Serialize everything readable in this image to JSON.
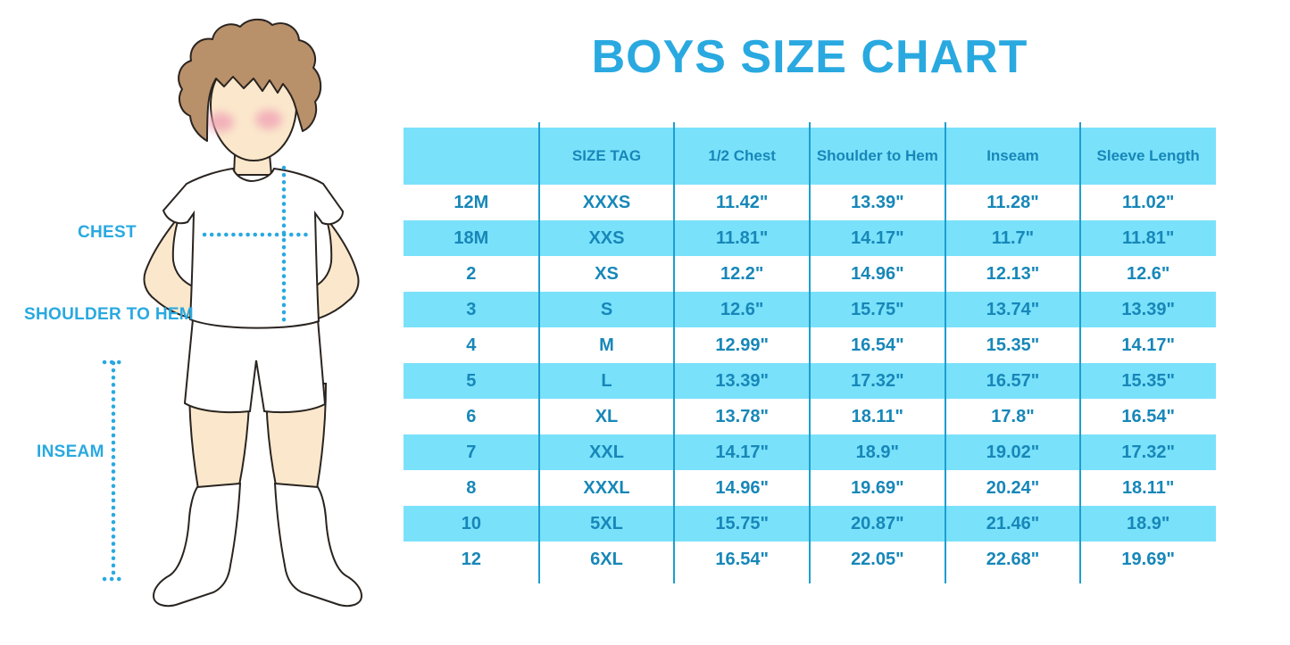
{
  "title": "BOYS SIZE CHART",
  "figure": {
    "chest_label": "CHEST",
    "shoulder_to_hem_label": "SHOULDER TO HEM",
    "inseam_label": "INSEAM"
  },
  "colors": {
    "title_blue": "#29A9E0",
    "table_text_blue": "#1787B8",
    "row_light_blue": "#7AE1FB",
    "divider_blue": "#1E9ECF",
    "skin": "#FBE8CC",
    "hair_brown": "#B8906A",
    "blush_pink": "#F0A3B5"
  },
  "chart_data": {
    "type": "table",
    "title": "BOYS SIZE CHART",
    "columns": [
      "",
      "SIZE TAG",
      "1/2 Chest",
      "Shoulder to Hem",
      "Inseam",
      "Sleeve Length"
    ],
    "rows": [
      [
        "12M",
        "XXXS",
        "11.42\"",
        "13.39\"",
        "11.28\"",
        "11.02\""
      ],
      [
        "18M",
        "XXS",
        "11.81\"",
        "14.17\"",
        "11.7\"",
        "11.81\""
      ],
      [
        "2",
        "XS",
        "12.2\"",
        "14.96\"",
        "12.13\"",
        "12.6\""
      ],
      [
        "3",
        "S",
        "12.6\"",
        "15.75\"",
        "13.74\"",
        "13.39\""
      ],
      [
        "4",
        "M",
        "12.99\"",
        "16.54\"",
        "15.35\"",
        "14.17\""
      ],
      [
        "5",
        "L",
        "13.39\"",
        "17.32\"",
        "16.57\"",
        "15.35\""
      ],
      [
        "6",
        "XL",
        "13.78\"",
        "18.11\"",
        "17.8\"",
        "16.54\""
      ],
      [
        "7",
        "XXL",
        "14.17\"",
        "18.9\"",
        "19.02\"",
        "17.32\""
      ],
      [
        "8",
        "XXXL",
        "14.96\"",
        "19.69\"",
        "20.24\"",
        "18.11\""
      ],
      [
        "10",
        "5XL",
        "15.75\"",
        "20.87\"",
        "21.46\"",
        "18.9\""
      ],
      [
        "12",
        "6XL",
        "16.54\"",
        "22.05\"",
        "22.68\"",
        "19.69\""
      ]
    ],
    "striping": "header and every second data row light blue, others white",
    "grid": "vertical column dividers only"
  }
}
